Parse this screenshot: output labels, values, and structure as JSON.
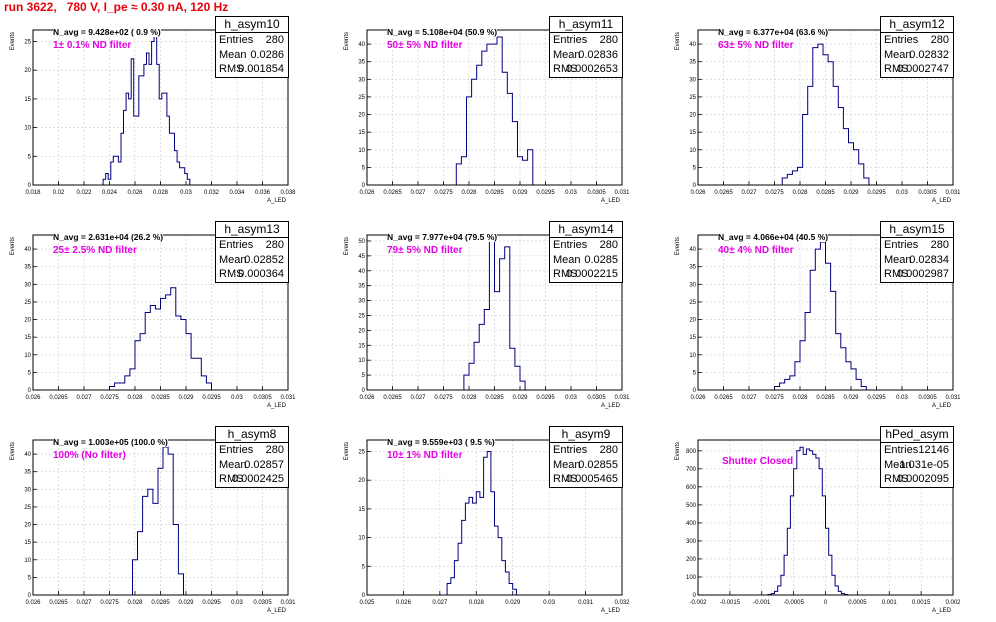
{
  "title": "run 3622,   780 V, I_pe ≈ 0.30 nA, 120 Hz",
  "colors": {
    "title": "#e8000b",
    "hist_line": "#00007f",
    "annotation": "#e600e6",
    "grid": "#cccccc"
  },
  "chart_data": [
    {
      "type": "histogram",
      "stats": {
        "name": "h_asym10",
        "entries": "280",
        "mean": "0.0286",
        "rms": "0.001854"
      },
      "n_avg": "N_avg = 9.428e+02 ( 0.9 %)",
      "filter": "1± 0.1% ND filter",
      "xlabel": "A_LED",
      "ylabel": "Events",
      "xlim": [
        0.018,
        0.038
      ],
      "ylim": [
        0,
        27
      ],
      "xticks": [
        "0.018",
        "0.02",
        "0.022",
        "0.024",
        "0.026",
        "0.028",
        "0.03",
        "0.032",
        "0.034",
        "0.036",
        "0.038"
      ],
      "xtick_vals": [
        0.018,
        0.02,
        0.022,
        0.024,
        0.026,
        0.028,
        0.03,
        0.032,
        0.034,
        0.036,
        0.038
      ],
      "yticks": [
        0,
        5,
        10,
        15,
        20,
        25
      ],
      "bins": {
        "x0": 0.0235,
        "width": 0.0002,
        "counts": [
          1,
          2,
          1,
          4,
          5,
          5,
          4,
          9,
          13,
          16,
          15,
          22,
          12,
          12,
          19,
          19,
          21,
          23,
          21,
          25,
          26,
          21,
          15,
          16,
          16,
          12,
          9,
          9,
          6,
          4,
          3,
          3,
          2,
          1
        ]
      }
    },
    {
      "type": "histogram",
      "stats": {
        "name": "h_asym11",
        "entries": "280",
        "mean": "0.02836",
        "rms": "0.0002653"
      },
      "n_avg": "N_avg = 5.108e+04 (50.9 %)",
      "filter": "50± 5% ND filter",
      "xlabel": "A_LED",
      "ylabel": "Events",
      "xlim": [
        0.026,
        0.031
      ],
      "ylim": [
        0,
        44
      ],
      "xticks": [
        "0.026",
        "0.0265",
        "0.027",
        "0.0275",
        "0.028",
        "0.0285",
        "0.029",
        "0.0295",
        "0.03",
        "0.0305",
        "0.031"
      ],
      "xtick_vals": [
        0.026,
        0.0265,
        0.027,
        0.0275,
        0.028,
        0.0285,
        0.029,
        0.0295,
        0.03,
        0.0305,
        0.031
      ],
      "yticks": [
        0,
        5,
        10,
        15,
        20,
        25,
        30,
        35,
        40
      ],
      "bins": {
        "x0": 0.02775,
        "width": 0.0001,
        "counts": [
          6,
          8,
          25,
          30,
          34,
          38,
          40,
          40,
          42,
          32,
          26,
          18,
          8,
          7,
          10
        ]
      }
    },
    {
      "type": "histogram",
      "stats": {
        "name": "h_asym12",
        "entries": "280",
        "mean": "0.02832",
        "rms": "0.0002747"
      },
      "n_avg": "N_avg = 6.377e+04 (63.6 %)",
      "filter": "63± 5% ND filter",
      "xlabel": "A_LED",
      "ylabel": "Events",
      "xlim": [
        0.026,
        0.031
      ],
      "ylim": [
        0,
        44
      ],
      "xticks": [
        "0.026",
        "0.0265",
        "0.027",
        "0.0275",
        "0.028",
        "0.0285",
        "0.029",
        "0.0295",
        "0.03",
        "0.0305",
        "0.031"
      ],
      "xtick_vals": [
        0.026,
        0.0265,
        0.027,
        0.0275,
        0.028,
        0.0285,
        0.029,
        0.0295,
        0.03,
        0.0305,
        0.031
      ],
      "yticks": [
        0,
        5,
        10,
        15,
        20,
        25,
        30,
        35,
        40
      ],
      "bins": {
        "x0": 0.02765,
        "width": 0.0001,
        "counts": [
          2,
          3,
          4,
          5,
          20,
          28,
          39,
          40,
          37,
          35,
          28,
          22,
          16,
          12,
          10,
          6,
          2
        ]
      }
    },
    {
      "type": "histogram",
      "stats": {
        "name": "h_asym13",
        "entries": "280",
        "mean": "0.02852",
        "rms": "0.000364"
      },
      "n_avg": "N_avg = 2.631e+04 (26.2 %)",
      "filter": "25± 2.5% ND filter",
      "xlabel": "A_LED",
      "ylabel": "Events",
      "xlim": [
        0.026,
        0.031
      ],
      "ylim": [
        0,
        44
      ],
      "xticks": [
        "0.026",
        "0.0265",
        "0.027",
        "0.0275",
        "0.028",
        "0.0285",
        "0.029",
        "0.0295",
        "0.03",
        "0.0305",
        "0.031"
      ],
      "xtick_vals": [
        0.026,
        0.0265,
        0.027,
        0.0275,
        0.028,
        0.0285,
        0.029,
        0.0295,
        0.03,
        0.0305,
        0.031
      ],
      "yticks": [
        0,
        5,
        10,
        15,
        20,
        25,
        30,
        35,
        40
      ],
      "bins": {
        "x0": 0.0275,
        "width": 0.0001,
        "counts": [
          1,
          2,
          2,
          4,
          6,
          14,
          16,
          22,
          24,
          23,
          26,
          27,
          29,
          21,
          20,
          16,
          9,
          9,
          4,
          2
        ]
      }
    },
    {
      "type": "histogram",
      "stats": {
        "name": "h_asym14",
        "entries": "280",
        "mean": "0.0285",
        "rms": "0.0002215"
      },
      "n_avg": "N_avg = 7.977e+04 (79.5 %)",
      "filter": "79± 5% ND filter",
      "xlabel": "A_LED",
      "ylabel": "Events",
      "xlim": [
        0.026,
        0.031
      ],
      "ylim": [
        0,
        52
      ],
      "xticks": [
        "0.026",
        "0.0265",
        "0.027",
        "0.0275",
        "0.028",
        "0.0285",
        "0.029",
        "0.0295",
        "0.03",
        "0.0305",
        "0.031"
      ],
      "xtick_vals": [
        0.026,
        0.0265,
        0.027,
        0.0275,
        0.028,
        0.0285,
        0.029,
        0.0295,
        0.03,
        0.0305,
        0.031
      ],
      "yticks": [
        0,
        5,
        10,
        15,
        20,
        25,
        30,
        35,
        40,
        45,
        50
      ],
      "bins": {
        "x0": 0.0279,
        "width": 0.0001,
        "counts": [
          5,
          9,
          16,
          22,
          27,
          50,
          33,
          44,
          48,
          14,
          8,
          3
        ]
      }
    },
    {
      "type": "histogram",
      "stats": {
        "name": "h_asym15",
        "entries": "280",
        "mean": "0.02834",
        "rms": "0.0002987"
      },
      "n_avg": "N_avg = 4.066e+04 (40.5 %)",
      "filter": "40± 4% ND filter",
      "xlabel": "A_LED",
      "ylabel": "Events",
      "xlim": [
        0.026,
        0.031
      ],
      "ylim": [
        0,
        44
      ],
      "xticks": [
        "0.026",
        "0.0265",
        "0.027",
        "0.0275",
        "0.028",
        "0.0285",
        "0.029",
        "0.0295",
        "0.03",
        "0.0305",
        "0.031"
      ],
      "xtick_vals": [
        0.026,
        0.0265,
        0.027,
        0.0275,
        0.028,
        0.0285,
        0.029,
        0.0295,
        0.03,
        0.0305,
        0.031
      ],
      "yticks": [
        0,
        5,
        10,
        15,
        20,
        25,
        30,
        35,
        40
      ],
      "bins": {
        "x0": 0.0275,
        "width": 0.0001,
        "counts": [
          1,
          2,
          3,
          4,
          8,
          14,
          22,
          34,
          40,
          42,
          36,
          28,
          16,
          12,
          8,
          6,
          3,
          1
        ]
      }
    },
    {
      "type": "histogram",
      "stats": {
        "name": "h_asym8",
        "entries": "280",
        "mean": "0.02857",
        "rms": "0.0002425"
      },
      "n_avg": "N_avg = 1.003e+05 (100.0 %)",
      "filter": "100% (No filter)",
      "xlabel": "A_LED",
      "ylabel": "Events",
      "xlim": [
        0.026,
        0.031
      ],
      "ylim": [
        0,
        44
      ],
      "xticks": [
        "0.026",
        "0.0265",
        "0.027",
        "0.0275",
        "0.028",
        "0.0285",
        "0.029",
        "0.0295",
        "0.03",
        "0.0305",
        "0.031"
      ],
      "xtick_vals": [
        0.026,
        0.0265,
        0.027,
        0.0275,
        0.028,
        0.0285,
        0.029,
        0.0295,
        0.03,
        0.0305,
        0.031
      ],
      "yticks": [
        0,
        5,
        10,
        15,
        20,
        25,
        30,
        35,
        40
      ],
      "bins": {
        "x0": 0.02795,
        "width": 0.0001,
        "counts": [
          10,
          18,
          28,
          30,
          26,
          36,
          42,
          40,
          20,
          6
        ]
      }
    },
    {
      "type": "histogram",
      "stats": {
        "name": "h_asym9",
        "entries": "280",
        "mean": "0.02855",
        "rms": "0.0005465"
      },
      "n_avg": "N_avg = 9.559e+03 ( 9.5 %)",
      "filter": "10± 1% ND filter",
      "xlabel": "A_LED",
      "ylabel": "Events",
      "xlim": [
        0.025,
        0.032
      ],
      "ylim": [
        0,
        27
      ],
      "xticks": [
        "0.025",
        "0.026",
        "0.027",
        "0.028",
        "0.029",
        "0.03",
        "0.031",
        "0.032"
      ],
      "xtick_vals": [
        0.025,
        0.026,
        0.027,
        0.028,
        0.029,
        0.03,
        0.031,
        0.032
      ],
      "yticks": [
        0,
        5,
        10,
        15,
        20,
        25
      ],
      "bins": {
        "x0": 0.0272,
        "width": 0.0001,
        "counts": [
          2,
          3,
          6,
          9,
          13,
          16,
          17,
          16,
          18,
          17,
          24,
          25,
          18,
          12,
          10,
          6,
          4,
          2,
          1
        ]
      }
    },
    {
      "type": "histogram",
      "stats": {
        "name": "hPed_asym",
        "entries": "12146",
        "mean": "-1.031e-05",
        "rms": "0.0002095"
      },
      "n_avg": "",
      "filter": "Shutter Closed",
      "xlabel": "A_LED",
      "ylabel": "Events",
      "xlim": [
        -0.002,
        0.002
      ],
      "ylim": [
        0,
        860
      ],
      "xticks": [
        "-0.002",
        "-0.0015",
        "-0.001",
        "-0.0005",
        "0",
        "0.0005",
        "0.001",
        "0.0015",
        "0.002"
      ],
      "xtick_vals": [
        -0.002,
        -0.0015,
        -0.001,
        -0.0005,
        0,
        0.0005,
        0.001,
        0.0015,
        0.002
      ],
      "yticks": [
        0,
        100,
        200,
        300,
        400,
        500,
        600,
        700,
        800
      ],
      "bins": {
        "x0": -0.0009,
        "width": 5e-05,
        "counts": [
          3,
          8,
          20,
          50,
          110,
          220,
          370,
          550,
          700,
          800,
          820,
          780,
          810,
          800,
          780,
          760,
          700,
          550,
          370,
          220,
          110,
          50,
          20,
          8,
          3
        ]
      }
    }
  ]
}
